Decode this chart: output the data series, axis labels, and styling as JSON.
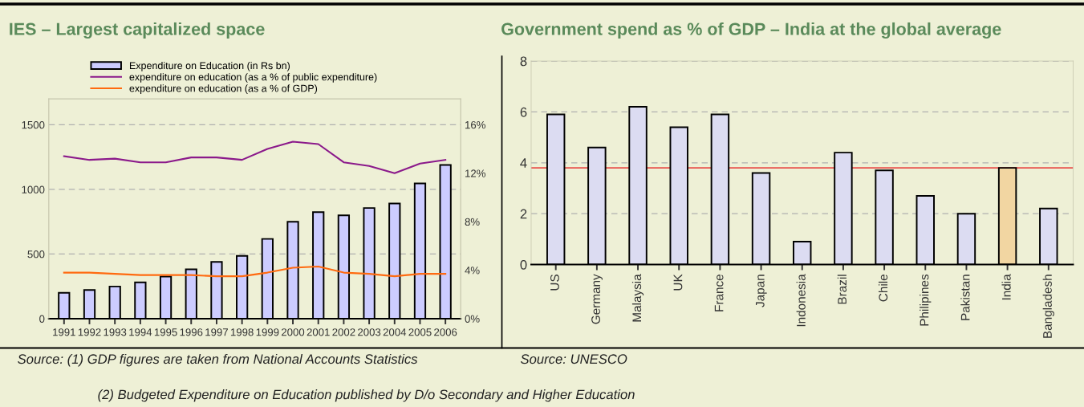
{
  "chart_data": [
    {
      "type": "bar",
      "title": "IES – Largest capitalized space",
      "categories": [
        "1991",
        "1992",
        "1993",
        "1994",
        "1995",
        "1996",
        "1997",
        "1998",
        "1999",
        "2000",
        "2001",
        "2002",
        "2003",
        "2004",
        "2005",
        "2006"
      ],
      "series": [
        {
          "name": "Expenditure on Education (in Rs bn)",
          "type": "bar",
          "color": "#ccccff",
          "values": [
            200,
            222,
            249,
            281,
            326,
            382,
            439,
            486,
            617,
            750,
            824,
            799,
            856,
            891,
            1046,
            1189
          ]
        },
        {
          "name": "expenditure on education (as a % of public expenditure)",
          "type": "line",
          "axis": "y2",
          "color": "#8b1a8b",
          "values": [
            13.4,
            13.1,
            13.2,
            12.9,
            12.9,
            13.3,
            13.3,
            13.1,
            14.0,
            14.6,
            14.4,
            12.9,
            12.6,
            12.0,
            12.8,
            13.1
          ]
        },
        {
          "name": "expenditure on education (as a % of GDP)",
          "type": "line",
          "axis": "y2",
          "color": "#ff6a10",
          "values": [
            3.8,
            3.8,
            3.7,
            3.6,
            3.6,
            3.6,
            3.5,
            3.5,
            3.8,
            4.2,
            4.3,
            3.8,
            3.7,
            3.5,
            3.7,
            3.7
          ]
        }
      ],
      "ylim": [
        0,
        1700
      ],
      "yticks": [
        0,
        500,
        1000,
        1500
      ],
      "y2lim": [
        0,
        18.13
      ],
      "y2ticks": [
        {
          "value": 0,
          "label": "0%"
        },
        {
          "value": 4,
          "label": "4%"
        },
        {
          "value": 8,
          "label": "8%"
        },
        {
          "value": 12,
          "label": "12%"
        },
        {
          "value": 16,
          "label": "16%"
        }
      ],
      "grid": "y",
      "legend": "top",
      "line_style": "solid",
      "marker": "none",
      "annotations": [
        "Source: (1) GDP figures are taken from National Accounts Statistics",
        "(2) Budgeted Expenditure on Education published by D/o Secondary and Higher Education"
      ]
    },
    {
      "type": "bar",
      "title": "Government spend as % of GDP – India at the global average",
      "categories": [
        "US",
        "Germany",
        "Malaysia",
        "UK",
        "France",
        "Japan",
        "Indonesia",
        "Brazil",
        "Chile",
        "Philipines",
        "Pakistan",
        "India",
        "Bangladesh"
      ],
      "values": [
        5.9,
        4.6,
        6.2,
        5.4,
        5.9,
        3.6,
        0.9,
        4.4,
        3.7,
        2.7,
        2.0,
        3.8,
        2.2
      ],
      "colors": [
        "#dcdcf2",
        "#dcdcf2",
        "#dcdcf2",
        "#dcdcf2",
        "#dcdcf2",
        "#dcdcf2",
        "#dcdcf2",
        "#dcdcf2",
        "#dcdcf2",
        "#dcdcf2",
        "#dcdcf2",
        "#f2d6a2",
        "#dcdcf2"
      ],
      "ylim": [
        0,
        8
      ],
      "yticks": [
        0,
        2,
        4,
        6,
        8
      ],
      "grid": "y",
      "ref_lines": [
        {
          "axis": "y",
          "value": 3.8,
          "color": "#e8504a",
          "line_style": "solid"
        }
      ],
      "annotations": [
        "Source: UNESCO"
      ]
    }
  ]
}
